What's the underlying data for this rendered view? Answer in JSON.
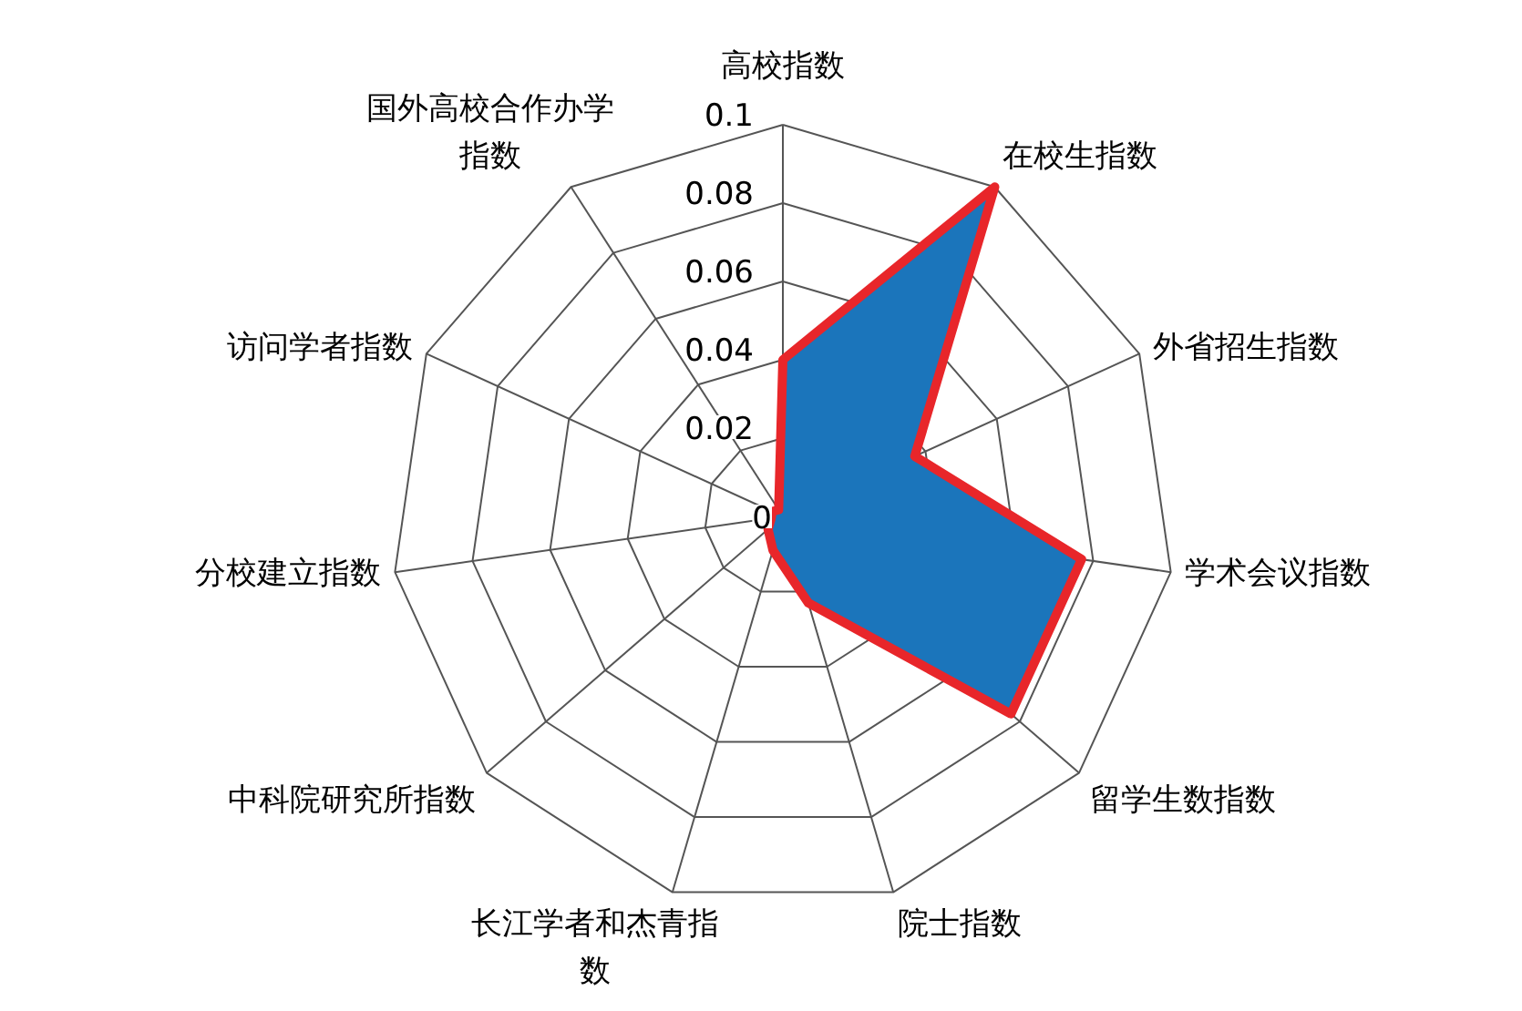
{
  "chart_data": {
    "type": "radar",
    "categories": [
      "高校指数",
      "在校生指数",
      "外省招生指数",
      "学术会议指数",
      "留学生数指数",
      "院士指数",
      "长江学者和杰青指数",
      "中科院研究所指数",
      "分校建立指数",
      "访问学者指数",
      "国外高校合作办学指数"
    ],
    "series": [
      {
        "color": "#1b75bb",
        "values": [
          0.04,
          0.1,
          0.037,
          0.077,
          0.077,
          0.023,
          0.009,
          0.005,
          0.003,
          0.003,
          0.002
        ]
      }
    ],
    "ylim": [
      0,
      0.1
    ],
    "yticks": [
      0,
      0.02,
      0.04,
      0.06,
      0.08,
      0.1
    ],
    "grid": true
  }
}
